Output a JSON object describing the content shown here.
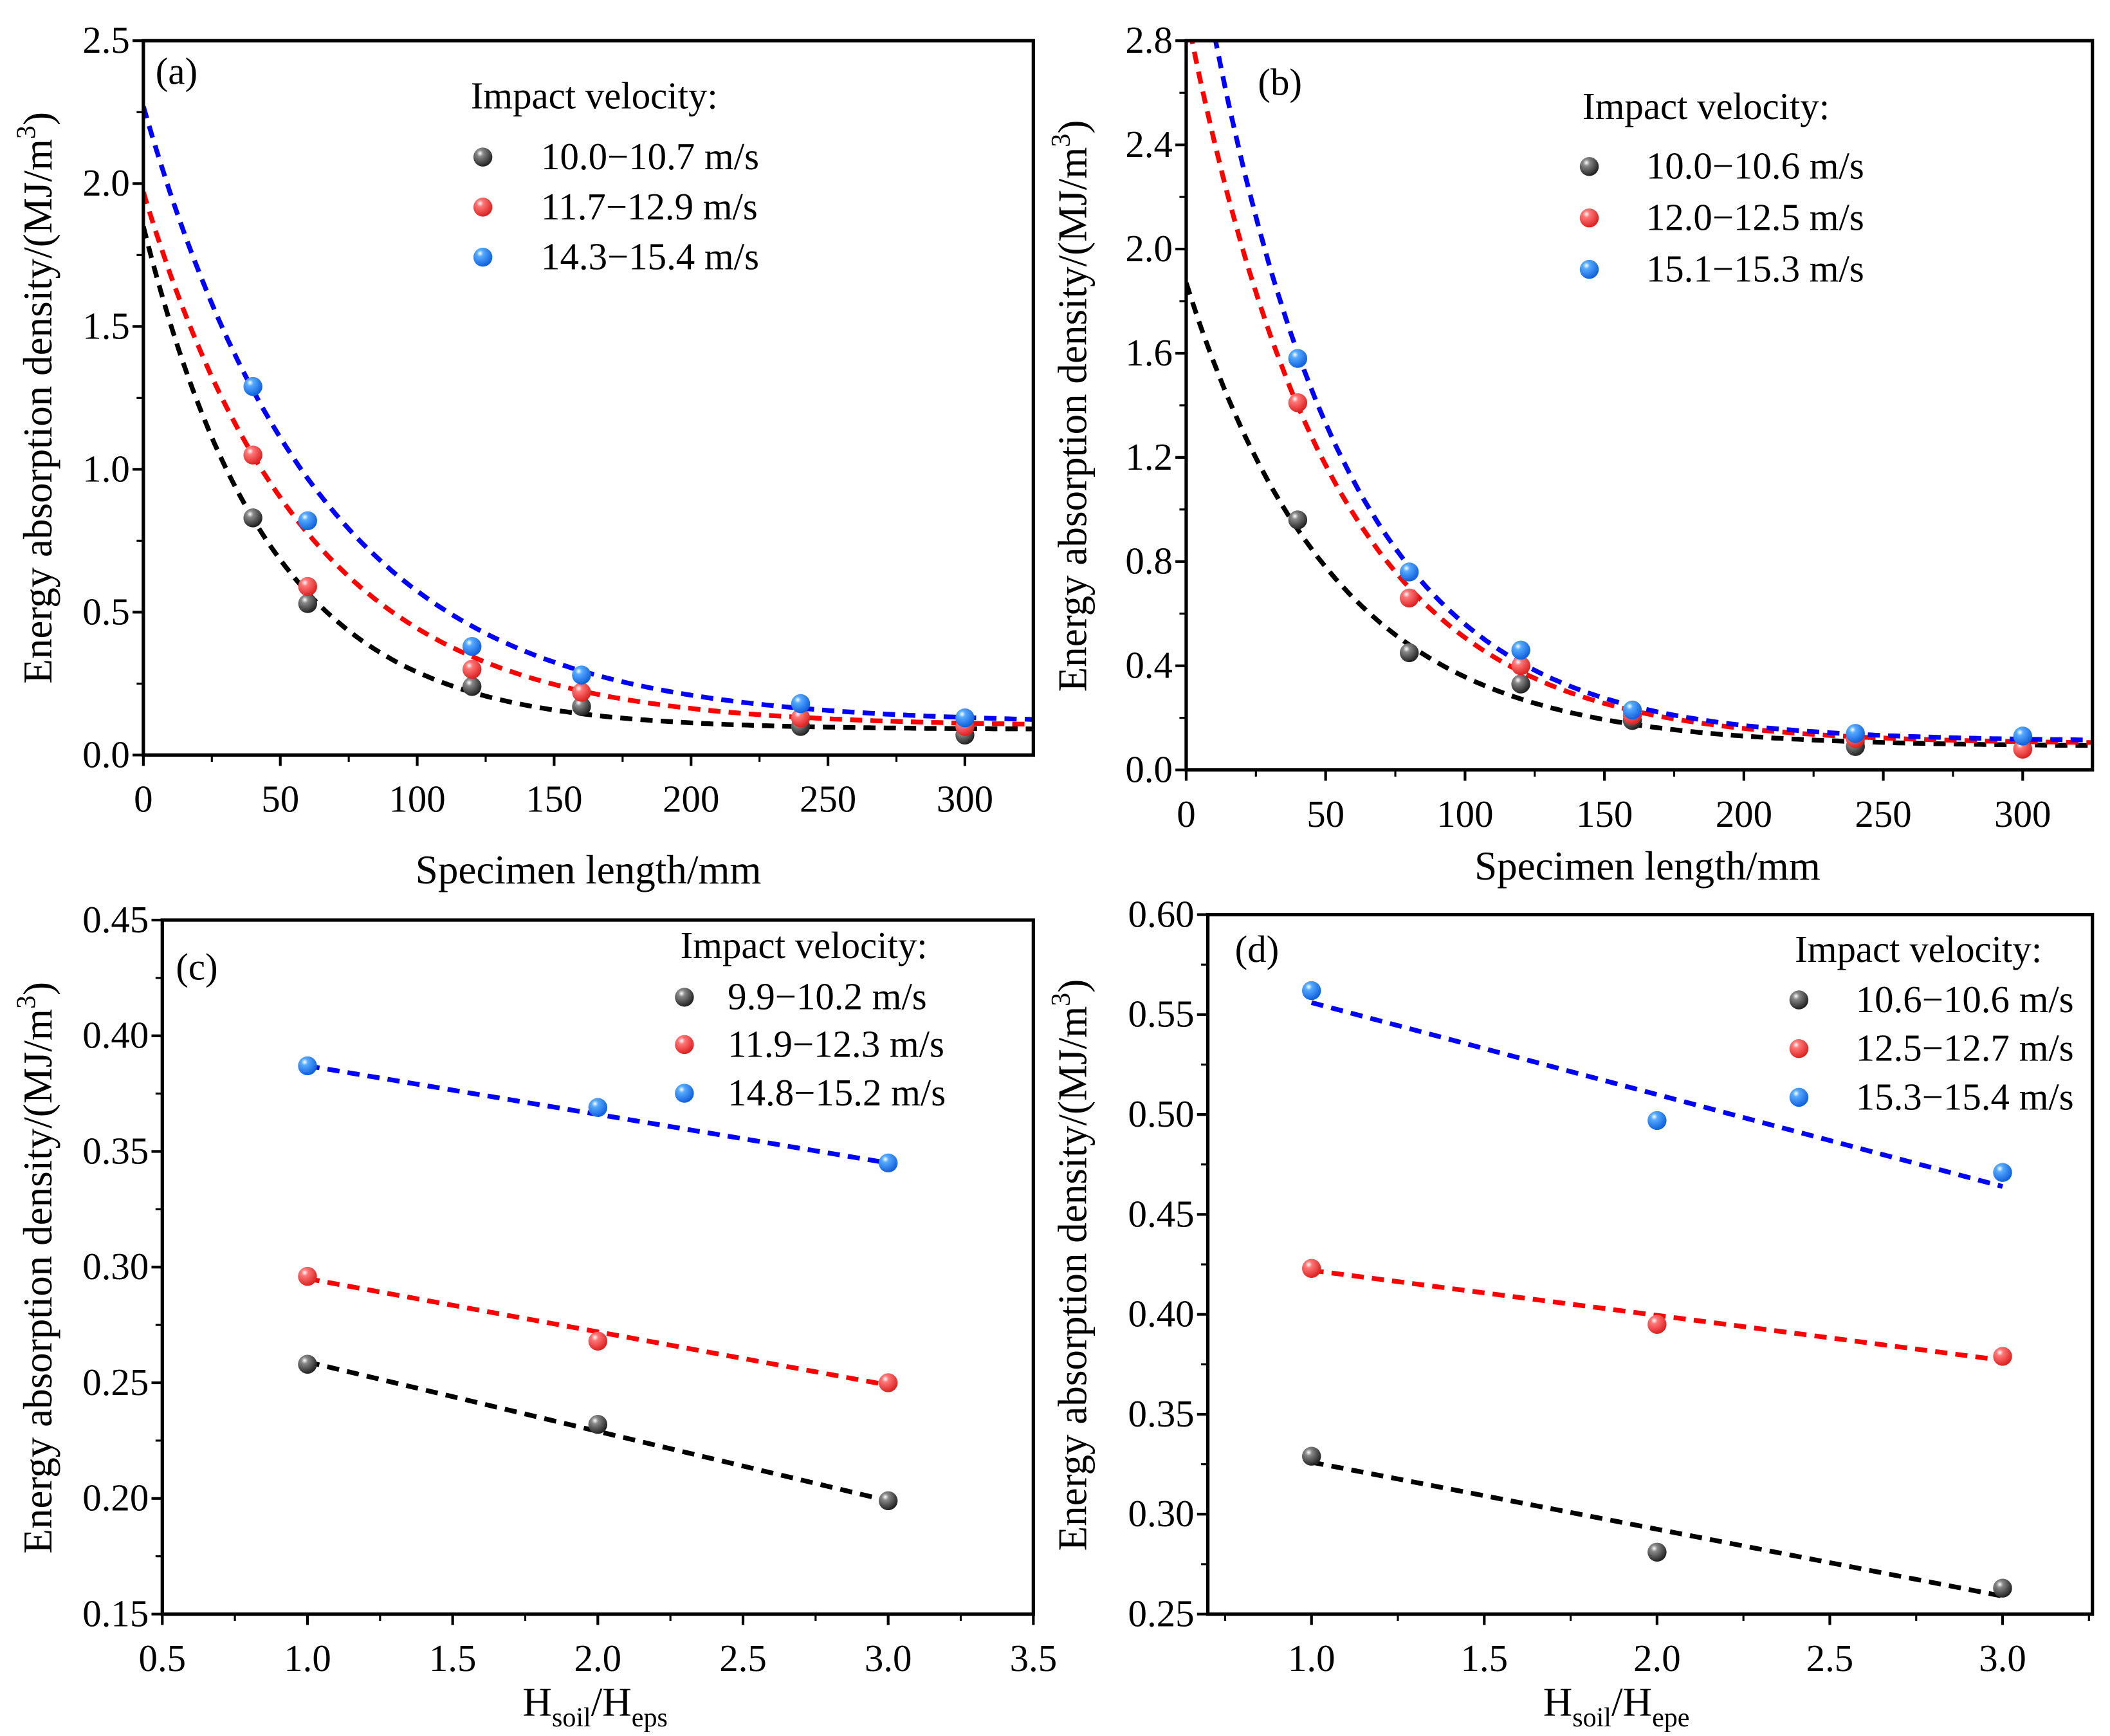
{
  "colors": {
    "black": "#444444",
    "red": "#ee3333",
    "blue": "#2277ee",
    "fit_black": "#000000",
    "fit_red": "#ff0000",
    "fit_blue": "#0000ff"
  },
  "chart_data": [
    {
      "type": "scatter",
      "panel_label": "(a)",
      "ylabel": {
        "text": "Energy absorption density/(MJ/m",
        "sup": "3",
        "close": ")"
      },
      "xlabel": {
        "text": "Specimen length/mm"
      },
      "xlim": [
        0,
        325
      ],
      "ylim": [
        0,
        2.5
      ],
      "xticks": [
        "0",
        "50",
        "100",
        "150",
        "200",
        "250",
        "300"
      ],
      "yticks": [
        "0.0",
        "0.5",
        "1.0",
        "1.5",
        "2.0",
        "2.5"
      ],
      "legend_title": "Impact velocity:",
      "series": [
        {
          "name": "10.0−10.7 m/s",
          "color": "black",
          "x": [
            40,
            60,
            120,
            160,
            240,
            300
          ],
          "y": [
            0.83,
            0.53,
            0.24,
            0.17,
            0.1,
            0.07
          ],
          "fit": {
            "model": "exponential",
            "y0": 0.09,
            "A": 1.76,
            "t": 46
          }
        },
        {
          "name": "11.7−12.9 m/s",
          "color": "red",
          "x": [
            40,
            60,
            120,
            160,
            240,
            300
          ],
          "y": [
            1.05,
            0.59,
            0.3,
            0.22,
            0.13,
            0.1
          ],
          "fit": {
            "model": "exponential",
            "y0": 0.1,
            "A": 1.87,
            "t": 59
          }
        },
        {
          "name": "14.3−15.4 m/s",
          "color": "blue",
          "x": [
            40,
            60,
            120,
            160,
            240,
            300
          ],
          "y": [
            1.29,
            0.82,
            0.38,
            0.28,
            0.18,
            0.13
          ],
          "fit": {
            "model": "exponential",
            "y0": 0.11,
            "A": 2.16,
            "t": 65
          }
        }
      ]
    },
    {
      "type": "scatter",
      "panel_label": "(b)",
      "ylabel": {
        "text": "Energy absorption density/(MJ/m",
        "sup": "3",
        "close": ")"
      },
      "xlabel": {
        "text": "Specimen length/mm"
      },
      "xlim": [
        0,
        325
      ],
      "ylim": [
        0,
        2.8
      ],
      "xticks": [
        "0",
        "50",
        "100",
        "150",
        "200",
        "250",
        "300"
      ],
      "yticks": [
        "0.0",
        "0.4",
        "0.8",
        "1.2",
        "1.6",
        "2.0",
        "2.4",
        "2.8"
      ],
      "legend_title": "Impact velocity:",
      "series": [
        {
          "name": "10.0−10.6 m/s",
          "color": "black",
          "x": [
            40,
            80,
            120,
            160,
            240,
            300
          ],
          "y": [
            0.96,
            0.45,
            0.33,
            0.19,
            0.09,
            0.08
          ],
          "fit": {
            "model": "exponential",
            "y0": 0.09,
            "A": 1.78,
            "t": 52.7
          }
        },
        {
          "name": "12.0−12.5 m/s",
          "color": "red",
          "x": [
            40,
            80,
            120,
            160,
            240,
            300
          ],
          "y": [
            1.41,
            0.66,
            0.4,
            0.21,
            0.12,
            0.08
          ],
          "fit": {
            "model": "exponential",
            "y0": 0.1,
            "A": 2.81,
            "t": 51.8
          }
        },
        {
          "name": "15.1−15.3 m/s",
          "color": "blue",
          "x": [
            40,
            80,
            120,
            160,
            240,
            300
          ],
          "y": [
            1.58,
            0.76,
            0.46,
            0.23,
            0.14,
            0.13
          ],
          "fit": {
            "model": "exponential",
            "y0": 0.11,
            "A": 3.32,
            "t": 50
          }
        }
      ]
    },
    {
      "type": "scatter",
      "panel_label": "(c)",
      "ylabel": {
        "text": "Energy absorption density/(MJ/m",
        "sup": "3",
        "close": ")"
      },
      "xlabel": {
        "text": "H",
        "sub1": "soil",
        "mid": "/H",
        "sub2": "eps"
      },
      "xlim": [
        0.5,
        3.5
      ],
      "ylim": [
        0.15,
        0.45
      ],
      "xticks": [
        "0.5",
        "1.0",
        "1.5",
        "2.0",
        "2.5",
        "3.0",
        "3.5"
      ],
      "yticks": [
        "0.15",
        "0.20",
        "0.25",
        "0.30",
        "0.35",
        "0.40",
        "0.45"
      ],
      "legend_title": "Impact velocity:",
      "series": [
        {
          "name": "9.9−10.2 m/s",
          "color": "black",
          "x": [
            1,
            2,
            3
          ],
          "y": [
            0.258,
            0.232,
            0.199
          ],
          "fit": {
            "model": "linear",
            "y_start": 0.259,
            "y_end": 0.199
          }
        },
        {
          "name": "11.9−12.3 m/s",
          "color": "red",
          "x": [
            1,
            2,
            3
          ],
          "y": [
            0.296,
            0.268,
            0.25
          ],
          "fit": {
            "model": "linear",
            "y_start": 0.295,
            "y_end": 0.249
          }
        },
        {
          "name": "14.8−15.2 m/s",
          "color": "blue",
          "x": [
            1,
            2,
            3
          ],
          "y": [
            0.387,
            0.369,
            0.345
          ],
          "fit": {
            "model": "linear",
            "y_start": 0.387,
            "y_end": 0.345
          }
        }
      ]
    },
    {
      "type": "scatter",
      "panel_label": "(d)",
      "ylabel": {
        "text": "Energy absorption density/(MJ/m",
        "sup": "3",
        "close": ")"
      },
      "xlabel": {
        "text": "H",
        "sub1": "soil",
        "mid": "/H",
        "sub2": "epe"
      },
      "xlim": [
        0.7,
        3.26
      ],
      "ylim": [
        0.25,
        0.6
      ],
      "xticks": [
        "1.0",
        "1.5",
        "2.0",
        "2.5",
        "3.0"
      ],
      "yticks": [
        "0.25",
        "0.30",
        "0.35",
        "0.40",
        "0.45",
        "0.50",
        "0.55",
        "0.60"
      ],
      "legend_title": "Impact velocity:",
      "series": [
        {
          "name": "10.6−10.6 m/s",
          "color": "black",
          "x": [
            1,
            2,
            3
          ],
          "y": [
            0.329,
            0.281,
            0.263
          ],
          "fit": {
            "model": "linear",
            "y_start": 0.326,
            "y_end": 0.259
          }
        },
        {
          "name": "12.5−12.7 m/s",
          "color": "red",
          "x": [
            1,
            2,
            3
          ],
          "y": [
            0.423,
            0.395,
            0.379
          ],
          "fit": {
            "model": "linear",
            "y_start": 0.422,
            "y_end": 0.377
          }
        },
        {
          "name": "15.3−15.4 m/s",
          "color": "blue",
          "x": [
            1,
            2,
            3
          ],
          "y": [
            0.562,
            0.497,
            0.471
          ],
          "fit": {
            "model": "linear",
            "y_start": 0.556,
            "y_end": 0.464
          }
        }
      ]
    }
  ]
}
